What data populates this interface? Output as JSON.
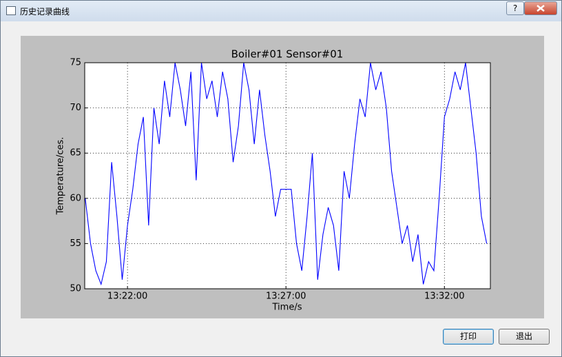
{
  "window": {
    "title": "历史记录曲线",
    "help": "?"
  },
  "buttons": {
    "print": "打印",
    "exit": "退出"
  },
  "chart_data": {
    "type": "line",
    "title": "Boiler#01 Sensor#01",
    "x_label": "Time/s",
    "y_label": "Temperature/ces.",
    "x": [
      "13:20:40",
      "13:20:50",
      "13:21:00",
      "13:21:10",
      "13:21:20",
      "13:21:30",
      "13:21:40",
      "13:21:50",
      "13:22:00",
      "13:22:10",
      "13:22:20",
      "13:22:30",
      "13:22:40",
      "13:22:50",
      "13:23:00",
      "13:23:10",
      "13:23:20",
      "13:23:30",
      "13:23:40",
      "13:23:50",
      "13:24:00",
      "13:24:10",
      "13:24:20",
      "13:24:30",
      "13:24:40",
      "13:24:50",
      "13:25:00",
      "13:25:10",
      "13:25:20",
      "13:25:30",
      "13:25:40",
      "13:25:50",
      "13:26:00",
      "13:26:10",
      "13:26:20",
      "13:26:30",
      "13:26:40",
      "13:26:50",
      "13:27:00",
      "13:27:10",
      "13:27:20",
      "13:27:30",
      "13:27:40",
      "13:27:50",
      "13:28:00",
      "13:28:10",
      "13:28:20",
      "13:28:30",
      "13:28:40",
      "13:28:50",
      "13:29:00",
      "13:29:10",
      "13:29:20",
      "13:29:30",
      "13:29:40",
      "13:29:50",
      "13:30:00",
      "13:30:10",
      "13:30:20",
      "13:30:30",
      "13:30:40",
      "13:30:50",
      "13:31:00",
      "13:31:10",
      "13:31:20",
      "13:31:30",
      "13:31:40",
      "13:31:50",
      "13:32:00",
      "13:32:10",
      "13:32:20",
      "13:32:30",
      "13:32:40",
      "13:32:50",
      "13:33:00",
      "13:33:10",
      "13:33:20"
    ],
    "series": [
      {
        "name": "Sensor#01",
        "color": "#0000ff",
        "values": [
          60,
          55,
          52,
          50.5,
          53,
          64,
          58,
          51,
          57,
          61,
          66,
          69,
          57,
          70,
          66,
          73,
          69,
          75,
          72,
          68,
          74,
          62,
          75,
          71,
          73,
          69,
          74,
          71,
          64,
          68,
          75,
          72,
          66,
          72,
          67,
          63,
          58,
          61,
          61,
          61,
          55,
          52,
          58,
          65,
          51,
          56,
          59,
          57,
          52,
          63,
          60,
          66,
          71,
          69,
          75,
          72,
          74,
          70,
          63,
          59,
          55,
          57,
          53,
          56,
          50.5,
          53,
          52,
          60,
          69,
          71,
          74,
          72,
          75,
          70,
          65,
          58,
          55
        ]
      }
    ],
    "xlim": [
      "13:20:39",
      "13:33:27"
    ],
    "xticks": [
      "13:22:00",
      "13:27:00",
      "13:32:00"
    ],
    "ylim": [
      50,
      75
    ],
    "yticks": [
      50,
      55,
      60,
      65,
      70,
      75
    ],
    "grid": true
  }
}
